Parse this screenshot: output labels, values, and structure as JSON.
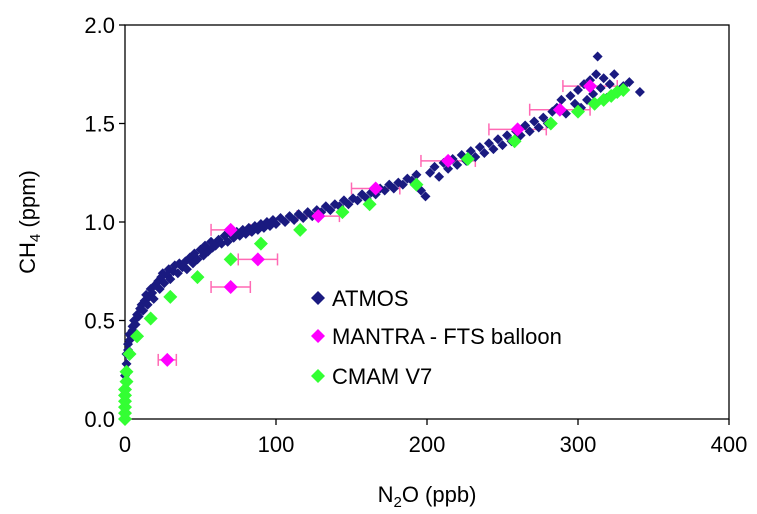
{
  "chart_data": {
    "type": "scatter",
    "xlabel": "N2O (ppb)",
    "ylabel": "CH4 (ppm)",
    "xlim": [
      0,
      400
    ],
    "ylim": [
      0,
      2.0
    ],
    "xticks": [
      "0",
      "100",
      "200",
      "300",
      "400"
    ],
    "yticks": [
      "0.0",
      "0.5",
      "1.0",
      "1.5",
      "2.0"
    ],
    "grid": false,
    "legend_position": "center-right",
    "colors": {
      "atmos": "#1a1a80",
      "mantra": "#ff00ff",
      "mantra_errorbar": "#ff69b4",
      "cmam": "#33ff33"
    },
    "series": [
      {
        "name": "ATMOS",
        "marker": "diamond",
        "points": [
          [
            0,
            0.22
          ],
          [
            1,
            0.28
          ],
          [
            1,
            0.33
          ],
          [
            2,
            0.38
          ],
          [
            2,
            0.35
          ],
          [
            3,
            0.4
          ],
          [
            3,
            0.43
          ],
          [
            4,
            0.42
          ],
          [
            5,
            0.45
          ],
          [
            5,
            0.47
          ],
          [
            6,
            0.5
          ],
          [
            7,
            0.48
          ],
          [
            8,
            0.53
          ],
          [
            9,
            0.52
          ],
          [
            10,
            0.56
          ],
          [
            11,
            0.58
          ],
          [
            12,
            0.55
          ],
          [
            13,
            0.6
          ],
          [
            14,
            0.63
          ],
          [
            15,
            0.58
          ],
          [
            16,
            0.62
          ],
          [
            17,
            0.66
          ],
          [
            18,
            0.64
          ],
          [
            19,
            0.61
          ],
          [
            20,
            0.68
          ],
          [
            22,
            0.7
          ],
          [
            23,
            0.66
          ],
          [
            24,
            0.72
          ],
          [
            25,
            0.74
          ],
          [
            26,
            0.69
          ],
          [
            28,
            0.73
          ],
          [
            29,
            0.76
          ],
          [
            30,
            0.71
          ],
          [
            32,
            0.75
          ],
          [
            33,
            0.78
          ],
          [
            35,
            0.74
          ],
          [
            36,
            0.79
          ],
          [
            38,
            0.77
          ],
          [
            40,
            0.8
          ],
          [
            41,
            0.76
          ],
          [
            43,
            0.82
          ],
          [
            45,
            0.79
          ],
          [
            46,
            0.84
          ],
          [
            48,
            0.81
          ],
          [
            50,
            0.86
          ],
          [
            52,
            0.83
          ],
          [
            53,
            0.88
          ],
          [
            55,
            0.85
          ],
          [
            57,
            0.9
          ],
          [
            58,
            0.87
          ],
          [
            60,
            0.88
          ],
          [
            62,
            0.91
          ],
          [
            64,
            0.89
          ],
          [
            66,
            0.93
          ],
          [
            68,
            0.9
          ],
          [
            70,
            0.94
          ],
          [
            72,
            0.92
          ],
          [
            74,
            0.95
          ],
          [
            76,
            0.93
          ],
          [
            78,
            0.96
          ],
          [
            80,
            0.94
          ],
          [
            82,
            0.97
          ],
          [
            84,
            0.95
          ],
          [
            86,
            0.98
          ],
          [
            88,
            0.96
          ],
          [
            90,
            0.99
          ],
          [
            92,
            0.97
          ],
          [
            94,
            1.0
          ],
          [
            96,
            0.98
          ],
          [
            98,
            1.01
          ],
          [
            100,
            0.99
          ],
          [
            103,
            1.02
          ],
          [
            106,
            1.0
          ],
          [
            109,
            1.03
          ],
          [
            112,
            1.01
          ],
          [
            115,
            1.04
          ],
          [
            118,
            1.02
          ],
          [
            121,
            1.05
          ],
          [
            124,
            1.03
          ],
          [
            127,
            1.06
          ],
          [
            130,
            1.05
          ],
          [
            133,
            1.08
          ],
          [
            136,
            1.06
          ],
          [
            139,
            1.09
          ],
          [
            142,
            1.08
          ],
          [
            145,
            1.11
          ],
          [
            148,
            1.09
          ],
          [
            151,
            1.12
          ],
          [
            154,
            1.11
          ],
          [
            157,
            1.14
          ],
          [
            160,
            1.12
          ],
          [
            163,
            1.15
          ],
          [
            166,
            1.14
          ],
          [
            169,
            1.17
          ],
          [
            172,
            1.16
          ],
          [
            175,
            1.19
          ],
          [
            178,
            1.17
          ],
          [
            181,
            1.2
          ],
          [
            184,
            1.19
          ],
          [
            187,
            1.22
          ],
          [
            190,
            1.21
          ],
          [
            193,
            1.24
          ],
          [
            196,
            1.16
          ],
          [
            199,
            1.13
          ],
          [
            202,
            1.25
          ],
          [
            205,
            1.28
          ],
          [
            208,
            1.23
          ],
          [
            211,
            1.3
          ],
          [
            214,
            1.27
          ],
          [
            217,
            1.32
          ],
          [
            220,
            1.29
          ],
          [
            223,
            1.34
          ],
          [
            226,
            1.31
          ],
          [
            229,
            1.36
          ],
          [
            232,
            1.33
          ],
          [
            235,
            1.38
          ],
          [
            238,
            1.35
          ],
          [
            241,
            1.4
          ],
          [
            244,
            1.37
          ],
          [
            247,
            1.42
          ],
          [
            250,
            1.39
          ],
          [
            253,
            1.44
          ],
          [
            256,
            1.41
          ],
          [
            259,
            1.46
          ],
          [
            262,
            1.44
          ],
          [
            265,
            1.49
          ],
          [
            268,
            1.46
          ],
          [
            271,
            1.51
          ],
          [
            274,
            1.48
          ],
          [
            277,
            1.53
          ],
          [
            280,
            1.5
          ],
          [
            283,
            1.56
          ],
          [
            286,
            1.58
          ],
          [
            289,
            1.62
          ],
          [
            292,
            1.55
          ],
          [
            295,
            1.64
          ],
          [
            298,
            1.6
          ],
          [
            300,
            1.67
          ],
          [
            302,
            1.58
          ],
          [
            304,
            1.7
          ],
          [
            306,
            1.62
          ],
          [
            308,
            1.72
          ],
          [
            310,
            1.65
          ],
          [
            312,
            1.75
          ],
          [
            313,
            1.84
          ],
          [
            315,
            1.68
          ],
          [
            317,
            1.73
          ],
          [
            319,
            1.63
          ],
          [
            321,
            1.7
          ],
          [
            324,
            1.75
          ],
          [
            327,
            1.66
          ],
          [
            330,
            1.69
          ],
          [
            334,
            1.71
          ],
          [
            341,
            1.66
          ]
        ]
      },
      {
        "name": "MANTRA - FTS balloon",
        "marker": "diamond",
        "points": [
          [
            28,
            0.3,
            6
          ],
          [
            70,
            0.96,
            13
          ],
          [
            70,
            0.67,
            13
          ],
          [
            88,
            0.81,
            13
          ],
          [
            128,
            1.03,
            14
          ],
          [
            166,
            1.17,
            16
          ],
          [
            214,
            1.31,
            18
          ],
          [
            260,
            1.47,
            19
          ],
          [
            288,
            1.57,
            20
          ],
          [
            308,
            1.69,
            18
          ]
        ]
      },
      {
        "name": "CMAM V7",
        "marker": "diamond",
        "points": [
          [
            0,
            0.0
          ],
          [
            0,
            0.03
          ],
          [
            0,
            0.06
          ],
          [
            0,
            0.09
          ],
          [
            0,
            0.12
          ],
          [
            0,
            0.15
          ],
          [
            1,
            0.19
          ],
          [
            1,
            0.24
          ],
          [
            3,
            0.33
          ],
          [
            8,
            0.42
          ],
          [
            17,
            0.51
          ],
          [
            30,
            0.62
          ],
          [
            48,
            0.72
          ],
          [
            70,
            0.81
          ],
          [
            90,
            0.89
          ],
          [
            116,
            0.96
          ],
          [
            144,
            1.05
          ],
          [
            162,
            1.09
          ],
          [
            193,
            1.19
          ],
          [
            227,
            1.32
          ],
          [
            258,
            1.41
          ],
          [
            282,
            1.5
          ],
          [
            300,
            1.56
          ],
          [
            311,
            1.6
          ],
          [
            317,
            1.62
          ],
          [
            322,
            1.64
          ],
          [
            326,
            1.66
          ],
          [
            330,
            1.67
          ]
        ]
      }
    ]
  }
}
